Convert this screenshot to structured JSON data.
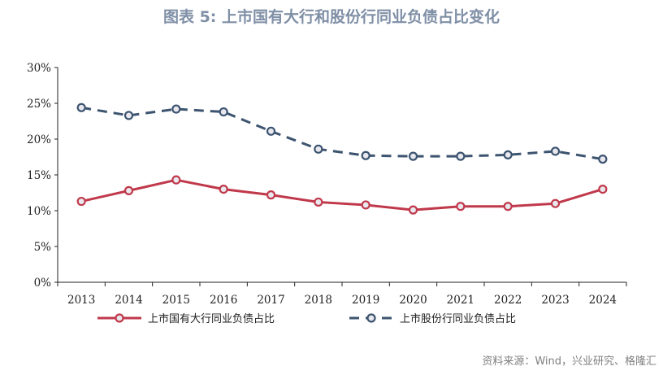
{
  "title": "图表 5:   上市国有大行和股份行同业负债占比变化",
  "source": "资料来源：Wind，兴业研究、格隆汇",
  "chart_data": {
    "type": "line",
    "categories": [
      "2013",
      "2014",
      "2015",
      "2016",
      "2017",
      "2018",
      "2019",
      "2020",
      "2021",
      "2022",
      "2023",
      "2024"
    ],
    "y_ticks": [
      "0%",
      "5%",
      "10%",
      "15%",
      "20%",
      "25%",
      "30%"
    ],
    "ylim": [
      0,
      30
    ],
    "grid": false,
    "legend_position": "bottom",
    "series": [
      {
        "name": "上市国有大行同业负债占比",
        "color": "#c0394b",
        "style": "solid",
        "values": [
          11.3,
          12.8,
          14.3,
          13.0,
          12.2,
          11.2,
          10.8,
          10.1,
          10.6,
          10.6,
          11.0,
          13.0
        ]
      },
      {
        "name": "上市股份行同业负债占比",
        "color": "#3d5470",
        "style": "dashed",
        "values": [
          24.4,
          23.3,
          24.2,
          23.8,
          21.1,
          18.6,
          17.7,
          17.6,
          17.6,
          17.8,
          18.3,
          17.2
        ]
      }
    ]
  }
}
